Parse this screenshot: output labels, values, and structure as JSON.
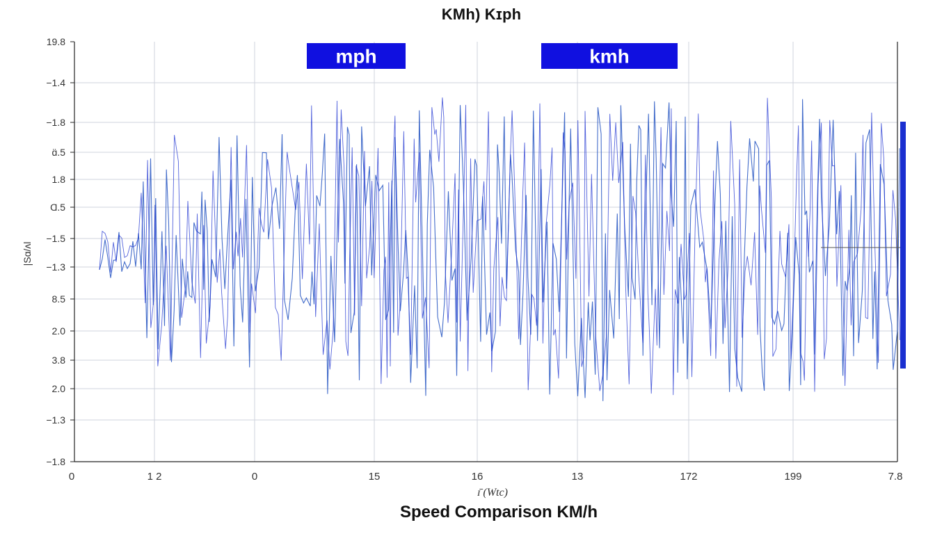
{
  "chart_data": {
    "type": "line",
    "title": "KMh) Kɪph",
    "caption": "Speed Comparison KM/h",
    "xlabel": "ɪ̄   (Wtc)",
    "ylabel": "|Sɑ/ʌl",
    "y_tick_labels": [
      "19.8",
      "−1.4",
      "−1.8",
      "ɑ̈.5",
      "1.8",
      "Ɑ.5",
      "−1.5",
      "−1.3",
      "8.5",
      "2.0",
      "3.8",
      "2.0",
      "−1.3",
      "−1.8"
    ],
    "x_tick_labels": [
      "0",
      "1 2",
      "0",
      "15",
      "16",
      "13",
      "172",
      "199",
      "7.8"
    ],
    "legend": [
      {
        "label": "mph",
        "color": "#1010e0"
      },
      {
        "label": "kmh",
        "color": "#1010e0"
      }
    ],
    "grid": true,
    "colors": {
      "line": "#2f5cc4",
      "line_dark": "#1a2fd0",
      "grid": "#cfd3dc",
      "axis": "#222222"
    }
  }
}
